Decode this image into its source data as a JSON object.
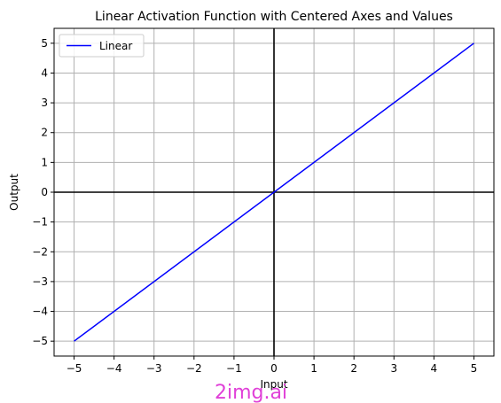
{
  "chart_data": {
    "type": "line",
    "title": "Linear Activation Function with Centered Axes and Values",
    "xlabel": "Input",
    "ylabel": "Output",
    "xlim": [
      -5.5,
      5.5
    ],
    "ylim": [
      -5.5,
      5.5
    ],
    "xticks": [
      -5,
      -4,
      -3,
      -2,
      -1,
      0,
      1,
      2,
      3,
      4,
      5
    ],
    "yticks": [
      -5,
      -4,
      -3,
      -2,
      -1,
      0,
      1,
      2,
      3,
      4,
      5
    ],
    "xtick_labels": [
      "−5",
      "−4",
      "−3",
      "−2",
      "−1",
      "0",
      "1",
      "2",
      "3",
      "4",
      "5"
    ],
    "ytick_labels": [
      "−5",
      "−4",
      "−3",
      "−2",
      "−1",
      "0",
      "1",
      "2",
      "3",
      "4",
      "5"
    ],
    "grid": true,
    "centered_axes": true,
    "legend_position": "top-left",
    "series": [
      {
        "name": "Linear",
        "color": "#0000ff",
        "x": [
          -5,
          5
        ],
        "y": [
          -5,
          5
        ]
      }
    ]
  },
  "watermark": {
    "text": "2img.ai",
    "color": "#e040d8"
  },
  "colors": {
    "grid": "#b0b0b0",
    "axis_line": "#000000",
    "frame": "#000000"
  }
}
